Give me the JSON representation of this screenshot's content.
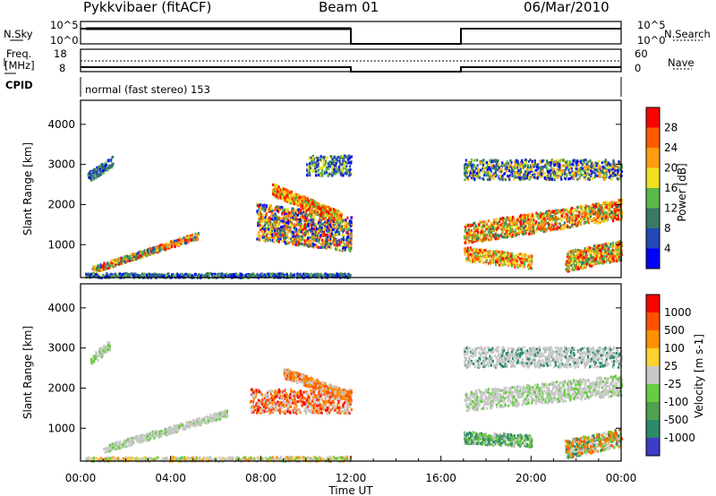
{
  "header": {
    "title": "Pykkvibaer (fitACF)",
    "beam": "Beam 01",
    "date": "06/Mar/2010"
  },
  "top_panels": {
    "nsky_label": "N.Sky",
    "nsky_ticks": [
      "10^5",
      "10^0"
    ],
    "nsearch_label": "N.Search",
    "nsearch_ticks": [
      "10^5",
      "10^0"
    ],
    "freq_label_1": "Freq.",
    "freq_label_2": "[MHz]",
    "freq_ticks": [
      "18",
      "8"
    ],
    "nave_label": "Nave",
    "nave_ticks": [
      "60",
      "0"
    ],
    "cpid_label": "CPID",
    "cpid_text": "normal (fast stereo) 153",
    "data_gap_hours": [
      12,
      17
    ]
  },
  "chart_data": [
    {
      "type": "heatmap",
      "name": "power",
      "ylabel": "Slant Range [km]",
      "yticks": [
        1000,
        2000,
        3000,
        4000
      ],
      "ylim": [
        180,
        4600
      ],
      "xlim_hours": [
        0,
        24
      ],
      "colorbar_label": "Power [dB]",
      "colorbar_ticks": [
        "28",
        "24",
        "20",
        "16",
        "12",
        "8",
        "4"
      ],
      "colorbar_colors": [
        "#0000ff",
        "#2448b8",
        "#3a7a64",
        "#5cb84a",
        "#f0e020",
        "#ff9c10",
        "#ff5a00",
        "#ff0000"
      ],
      "no_data_hours": [
        12,
        17
      ]
    },
    {
      "type": "heatmap",
      "name": "velocity",
      "ylabel": "Slant Range [km]",
      "yticks": [
        1000,
        2000,
        3000,
        4000
      ],
      "ylim": [
        180,
        4600
      ],
      "xlim_hours": [
        0,
        24
      ],
      "xticks": [
        "00:00",
        "04:00",
        "08:00",
        "12:00",
        "16:00",
        "20:00",
        "00:00"
      ],
      "xlabel": "Time UT",
      "colorbar_label": "Velocity [m s-1]",
      "colorbar_ticks": [
        "1000",
        "500",
        "100",
        "25",
        "-25",
        "-100",
        "-500",
        "-1000"
      ],
      "colorbar_colors": [
        "#3c3cc8",
        "#2a8a6a",
        "#50a050",
        "#66cc40",
        "#c8c8c8",
        "#ffd030",
        "#ff9000",
        "#ff5000",
        "#ff0000"
      ],
      "no_data_hours": [
        12,
        17
      ]
    }
  ]
}
